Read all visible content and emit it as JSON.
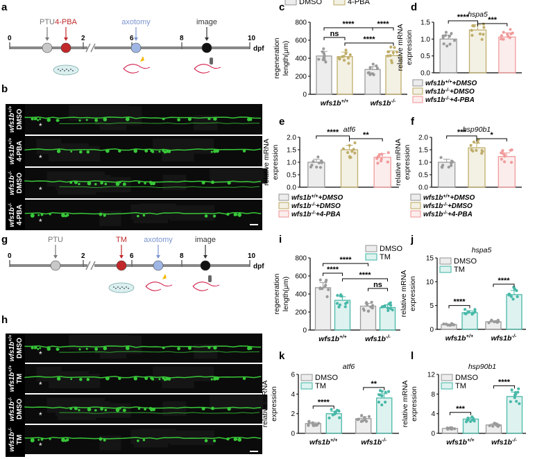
{
  "panel_letters": [
    "a",
    "b",
    "c",
    "d",
    "e",
    "f",
    "g",
    "h",
    "i",
    "j",
    "k",
    "l"
  ],
  "colors": {
    "dmso": "#9a9a9a",
    "pba": "#bfae6a",
    "pba_ko": "#f19a9a",
    "tm": "#48b8a8",
    "red_dot": "#c0282a",
    "blue_dot": "#9fb6e4",
    "grey_dot": "#c8c8c8",
    "black_dot": "#111111",
    "neuron": "#38c838"
  },
  "timeline_a": {
    "ticks": [
      "0",
      "2",
      "6",
      "8",
      "10"
    ],
    "unit": "dpf",
    "labels": {
      "ptu": "PTU",
      "drug": "4-PBA",
      "axotomy": "axotomy",
      "image": "image"
    }
  },
  "timeline_g": {
    "ticks": [
      "0",
      "2",
      "6",
      "8",
      "10"
    ],
    "unit": "dpf",
    "labels": {
      "ptu": "PTU",
      "drug": "TM",
      "axotomy": "axotomy",
      "image": "image"
    }
  },
  "images_b": {
    "rows": [
      {
        "genotype": "wfs1b+/+",
        "treatment": "DMSO"
      },
      {
        "genotype": "wfs1b+/+",
        "treatment": "4-PBA"
      },
      {
        "genotype": "wfs1b-/-",
        "treatment": "DMSO"
      },
      {
        "genotype": "wfs1b-/-",
        "treatment": "4-PBA"
      }
    ],
    "asterisk": "*"
  },
  "images_h": {
    "rows": [
      {
        "genotype": "wfs1b+/+",
        "treatment": "DMSO"
      },
      {
        "genotype": "wfs1b+/+",
        "treatment": "TM"
      },
      {
        "genotype": "wfs1b-/-",
        "treatment": "DMSO"
      },
      {
        "genotype": "wfs1b-/-",
        "treatment": "TM"
      }
    ],
    "asterisk": "*"
  },
  "chart_data": [
    {
      "id": "c",
      "type": "bar",
      "ylabel": "regeneration length(μm)",
      "ylim": [
        0,
        800
      ],
      "yticks": [
        "0",
        "200",
        "400",
        "600",
        "800"
      ],
      "categories": [
        "wfs1b+/+",
        "wfs1b-/-"
      ],
      "legend": [
        "DMSO",
        "4-PBA"
      ],
      "series": [
        {
          "name": "DMSO",
          "values": [
            425,
            275
          ]
        },
        {
          "name": "4-PBA",
          "values": [
            418,
            430
          ]
        }
      ],
      "significance": [
        "ns",
        "****",
        "****",
        "****"
      ]
    },
    {
      "id": "d",
      "type": "bar",
      "title": "hspa5",
      "ylabel": "relative mRNA expression",
      "ylim": [
        0,
        1.5
      ],
      "yticks": [
        "0.0",
        "0.5",
        "1.0",
        "1.5"
      ],
      "categories": [
        "wfs1b+/+ +DMSO",
        "wfs1b-/- +DMSO",
        "wfs1b-/- +4-PBA"
      ],
      "values": [
        1.0,
        1.27,
        1.06
      ],
      "legend": [
        "wfs1b+/+ +DMSO",
        "wfs1b-/- +DMSO",
        "wfs1b-/- +4-PBA"
      ],
      "significance": [
        "****",
        "***"
      ]
    },
    {
      "id": "e",
      "type": "bar",
      "title": "atf6",
      "ylabel": "relative mRNA expression",
      "ylim": [
        0,
        2.0
      ],
      "yticks": [
        "0.0",
        "0.5",
        "1.0",
        "1.5",
        "2.0"
      ],
      "categories": [
        "wfs1b+/+ +DMSO",
        "wfs1b-/- +DMSO",
        "wfs1b-/- +4-PBA"
      ],
      "values": [
        1.0,
        1.5,
        1.2
      ],
      "legend": [
        "wfs1b+/+ +DMSO",
        "wfs1b-/- +DMSO",
        "wfs1b-/- +4-PBA"
      ],
      "significance": [
        "****",
        "**"
      ]
    },
    {
      "id": "f",
      "type": "bar",
      "title": "hsp90b1",
      "ylabel": "relative mRNA expression",
      "ylim": [
        0,
        2.0
      ],
      "yticks": [
        "0.0",
        "0.5",
        "1.0",
        "1.5",
        "2.0"
      ],
      "categories": [
        "wfs1b+/+ +DMSO",
        "wfs1b-/- +DMSO",
        "wfs1b-/- +4-PBA"
      ],
      "values": [
        1.0,
        1.58,
        1.23
      ],
      "legend": [
        "wfs1b+/+ +DMSO",
        "wfs1b-/- +DMSO",
        "wfs1b-/- +4-PBA"
      ],
      "significance": [
        "***",
        "*"
      ]
    },
    {
      "id": "i",
      "type": "bar",
      "ylabel": "regeneration length(μm)",
      "ylim": [
        0,
        800
      ],
      "yticks": [
        "0",
        "200",
        "400",
        "600",
        "800"
      ],
      "categories": [
        "wfs1b+/+",
        "wfs1b-/-"
      ],
      "legend": [
        "DMSO",
        "TM"
      ],
      "series": [
        {
          "name": "DMSO",
          "values": [
            470,
            265
          ]
        },
        {
          "name": "TM",
          "values": [
            330,
            250
          ]
        }
      ],
      "significance": [
        "****",
        "****",
        "****",
        "ns"
      ]
    },
    {
      "id": "j",
      "type": "bar",
      "title": "hspa5",
      "ylabel": "relative mRNA expression",
      "ylim": [
        0,
        15
      ],
      "yticks": [
        "0",
        "5",
        "10",
        "15"
      ],
      "categories": [
        "wfs1b+/+",
        "wfs1b-/-"
      ],
      "legend": [
        "DMSO",
        "TM"
      ],
      "series": [
        {
          "name": "DMSO",
          "values": [
            1.0,
            1.6
          ]
        },
        {
          "name": "TM",
          "values": [
            3.5,
            7.3
          ]
        }
      ],
      "significance": [
        "****",
        "****"
      ]
    },
    {
      "id": "k",
      "type": "bar",
      "title": "atf6",
      "ylabel": "relative mRNA expression",
      "ylim": [
        0,
        6
      ],
      "yticks": [
        "0",
        "2",
        "4",
        "6"
      ],
      "categories": [
        "wfs1b+/+",
        "wfs1b-/-"
      ],
      "legend": [
        "DMSO",
        "TM"
      ],
      "series": [
        {
          "name": "DMSO",
          "values": [
            1.0,
            1.5
          ]
        },
        {
          "name": "TM",
          "values": [
            2.0,
            3.6
          ]
        }
      ],
      "significance": [
        "****",
        "**"
      ]
    },
    {
      "id": "l",
      "type": "bar",
      "title": "hsp90b1",
      "ylabel": "relative mRNA expression",
      "ylim": [
        0,
        12
      ],
      "yticks": [
        "0",
        "4",
        "8",
        "12"
      ],
      "categories": [
        "wfs1b+/+",
        "wfs1b-/-"
      ],
      "legend": [
        "DMSO",
        "TM"
      ],
      "series": [
        {
          "name": "DMSO",
          "values": [
            1.0,
            1.7
          ]
        },
        {
          "name": "TM",
          "values": [
            2.9,
            7.5
          ]
        }
      ],
      "significance": [
        "***",
        "****"
      ]
    }
  ]
}
